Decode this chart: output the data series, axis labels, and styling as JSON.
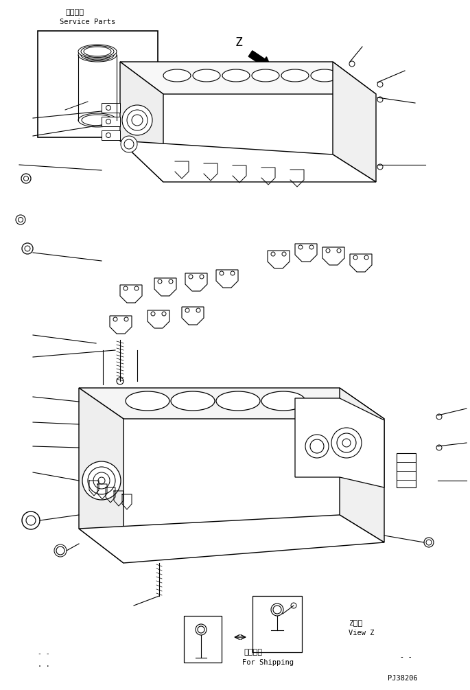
{
  "title_jp": "補給専用",
  "title_en": "Service Parts",
  "view_label_jp": "Z　視",
  "view_label_en": "View Z",
  "shipping_jp": "運搞部品",
  "shipping_en": "For Shipping",
  "part_number": "PJ38206",
  "background_color": "#ffffff",
  "line_color": "#000000",
  "fig_width": 6.85,
  "fig_height": 10.05,
  "dpi": 100
}
